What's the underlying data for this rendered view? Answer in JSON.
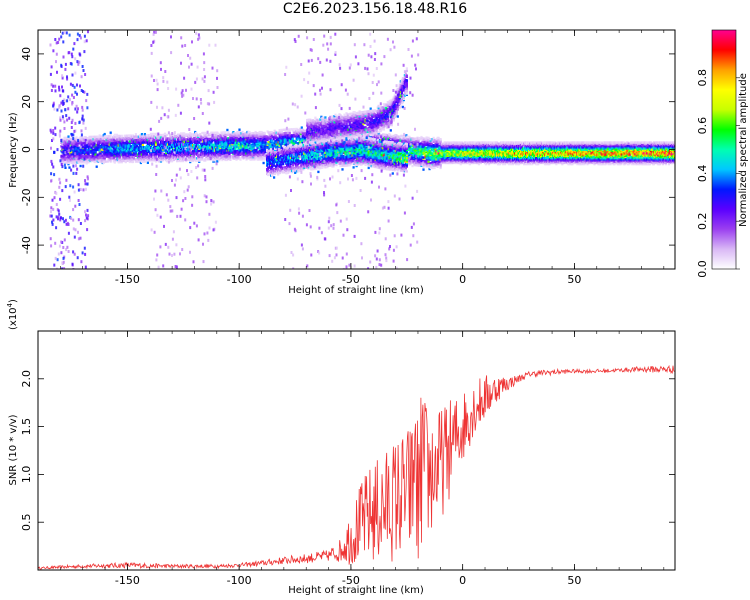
{
  "page_title": "C2E6.2023.156.18.48.R16",
  "chart_data": [
    {
      "type": "heatmap",
      "title": "",
      "xlabel": "Height of straight line (km)",
      "ylabel": "Frequency (Hz)",
      "xlim": [
        -190,
        95
      ],
      "ylim": [
        -50,
        50
      ],
      "xticks": [
        -150,
        -100,
        -50,
        0,
        50
      ],
      "yticks": [
        -40,
        -20,
        0,
        20,
        40
      ],
      "colorbar": {
        "label": "Normalized spectral amplitude",
        "range": [
          0.0,
          1.0
        ],
        "ticks": [
          0.0,
          0.2,
          0.4,
          0.6,
          0.8
        ],
        "tick_labels": [
          "0.0",
          "0.2",
          "0.4",
          "0.6",
          "0.8"
        ],
        "colormap": [
          "#ffffff",
          "#d9b8f5",
          "#9b3ff0",
          "#5a00ff",
          "#0018ff",
          "#00c8ff",
          "#00ffb0",
          "#00ff00",
          "#c8ff00",
          "#ffff00",
          "#ffa000",
          "#ff0000",
          "#ff0090"
        ]
      },
      "ridges": [
        {
          "x": [
            -180,
            -150,
            -120,
            -100,
            -90,
            -80,
            -60,
            -40,
            -25,
            -15,
            0,
            30,
            60,
            95
          ],
          "y": [
            0,
            1,
            1.5,
            2,
            2,
            3,
            4,
            2,
            0,
            -1,
            -1,
            -1,
            -1,
            -1
          ],
          "strength": [
            0.3,
            0.4,
            0.4,
            0.45,
            0.4,
            0.45,
            0.45,
            0.5,
            0.5,
            0.6,
            0.7,
            0.75,
            0.8,
            0.85
          ]
        },
        {
          "x": [
            -88,
            -75,
            -60,
            -45,
            -35,
            -25
          ],
          "y": [
            -5,
            -3,
            -1,
            0,
            -2,
            -3
          ],
          "strength": [
            0.35,
            0.4,
            0.45,
            0.5,
            0.5,
            0.55
          ]
        },
        {
          "x": [
            -70,
            -55,
            -40,
            -32,
            -25
          ],
          "y": [
            8,
            10,
            12,
            16,
            30
          ],
          "strength": [
            0.25,
            0.25,
            0.3,
            0.3,
            0.25
          ]
        }
      ]
    },
    {
      "type": "line",
      "title": "",
      "xlabel": "Height of straight line (km)",
      "ylabel": "SNR (10 * v/v)",
      "y_multiplier_label": "(x10",
      "y_multiplier_exp": "4",
      "y_multiplier_close": ")",
      "xlim": [
        -190,
        95
      ],
      "ylim": [
        0,
        2.5
      ],
      "xticks": [
        -150,
        -100,
        -50,
        0,
        50
      ],
      "yticks": [
        0.5,
        1.0,
        1.5,
        2.0
      ],
      "ytick_labels": [
        "0.5",
        "1.0",
        "1.5",
        "2.0"
      ],
      "series": [
        {
          "color": "#ee3333",
          "x": [
            -190,
            -170,
            -150,
            -130,
            -110,
            -100,
            -90,
            -80,
            -70,
            -60,
            -55,
            -50,
            -45,
            -40,
            -35,
            -30,
            -25,
            -20,
            -18,
            -15,
            -10,
            -5,
            0,
            5,
            10,
            15,
            20,
            25,
            30,
            40,
            50,
            60,
            70,
            80,
            90,
            95
          ],
          "y": [
            0.02,
            0.04,
            0.05,
            0.04,
            0.04,
            0.05,
            0.07,
            0.1,
            0.12,
            0.15,
            0.2,
            0.35,
            0.5,
            0.6,
            0.65,
            0.75,
            0.8,
            0.9,
            1.0,
            1.0,
            1.1,
            1.3,
            1.5,
            1.7,
            1.8,
            1.9,
            1.95,
            2.0,
            2.05,
            2.07,
            2.08,
            2.08,
            2.09,
            2.1,
            2.1,
            2.1
          ],
          "noise": [
            0.01,
            0.02,
            0.03,
            0.02,
            0.02,
            0.02,
            0.03,
            0.04,
            0.05,
            0.06,
            0.12,
            0.3,
            0.45,
            0.55,
            0.6,
            0.65,
            0.7,
            0.8,
            0.9,
            0.7,
            0.6,
            0.5,
            0.4,
            0.3,
            0.25,
            0.15,
            0.08,
            0.04,
            0.03,
            0.03,
            0.02,
            0.02,
            0.02,
            0.03,
            0.04,
            0.04
          ]
        }
      ]
    }
  ]
}
